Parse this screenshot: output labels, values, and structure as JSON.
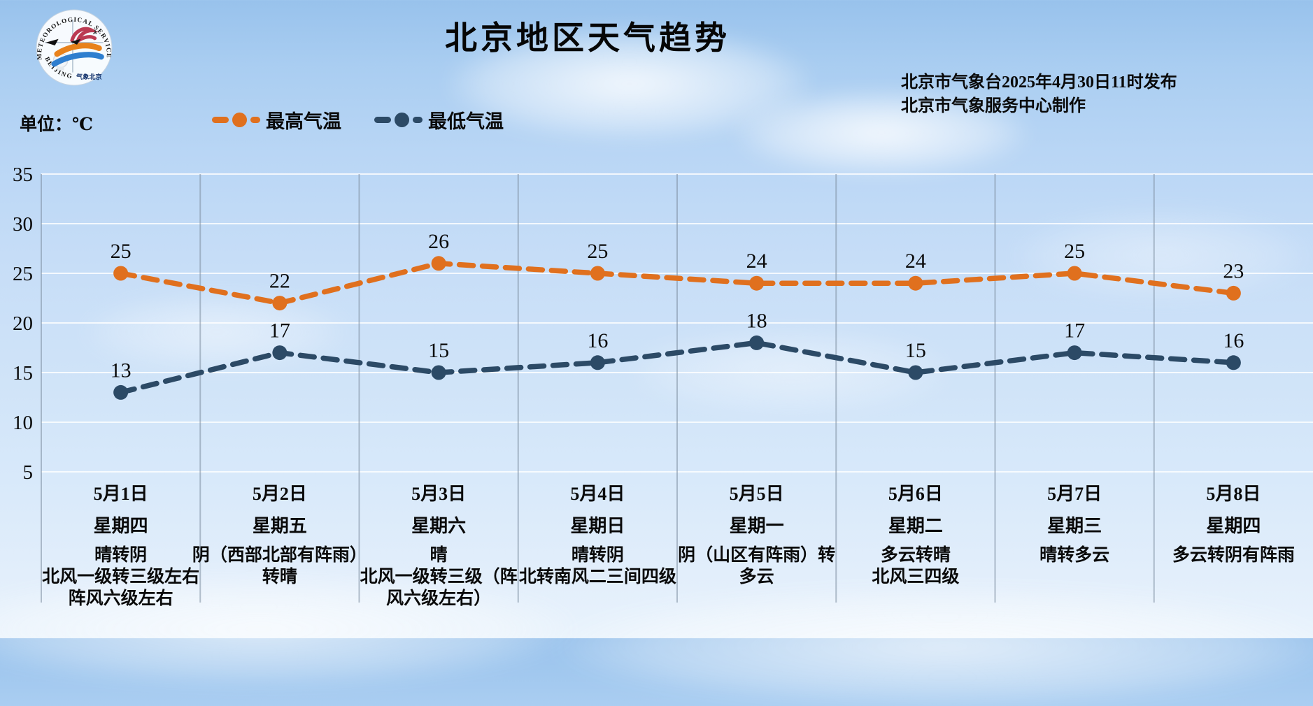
{
  "header": {
    "title": "北京地区天气趋势",
    "publisher_line1": "北京市气象台2025年4月30日11时发布",
    "publisher_line2": "北京市气象服务中心制作",
    "unit_label": "单位：℃",
    "logo": {
      "arc_top_text": "METEOROLOGICAL SERVICE",
      "arc_bottom_text": "BEIJING",
      "cn_text": "气象北京"
    }
  },
  "legend": {
    "high": {
      "label": "最高气温",
      "color": "#E0701E"
    },
    "low": {
      "label": "最低气温",
      "color": "#2C4A66"
    }
  },
  "chart_data": {
    "type": "line",
    "title": "北京地区天气趋势",
    "ylabel": "℃",
    "ylim": [
      5,
      35
    ],
    "yticks": [
      35,
      30,
      25,
      20,
      15,
      10,
      5
    ],
    "grid": true,
    "legend_position": "top",
    "line_style": "dashed",
    "categories": [
      "5月1日",
      "5月2日",
      "5月3日",
      "5月4日",
      "5月5日",
      "5月6日",
      "5月7日",
      "5月8日"
    ],
    "weekdays": [
      "星期四",
      "星期五",
      "星期六",
      "星期日",
      "星期一",
      "星期二",
      "星期三",
      "星期四"
    ],
    "weather": [
      [
        "晴转阴",
        "北风一级转三级左右",
        "阵风六级左右"
      ],
      [
        "阴（西部北部有阵雨）",
        "转晴"
      ],
      [
        "晴",
        "北风一级转三级（阵",
        "风六级左右）"
      ],
      [
        "晴转阴",
        "北转南风二三间四级"
      ],
      [
        "阴（山区有阵雨）转",
        "多云"
      ],
      [
        "多云转晴",
        "北风三四级"
      ],
      [
        "晴转多云"
      ],
      [
        "多云转阴有阵雨"
      ]
    ],
    "series": [
      {
        "name": "最高气温",
        "key": "high",
        "color": "#E0701E",
        "values": [
          25,
          22,
          26,
          25,
          24,
          24,
          25,
          23
        ]
      },
      {
        "name": "最低气温",
        "key": "low",
        "color": "#2C4A66",
        "values": [
          13,
          17,
          15,
          16,
          18,
          15,
          17,
          16
        ]
      }
    ]
  },
  "colors": {
    "h_gridline": "rgba(255,255,255,0.8)",
    "v_gridline": "rgba(125,142,160,0.55)",
    "axis_text": "#0a0a0a"
  }
}
